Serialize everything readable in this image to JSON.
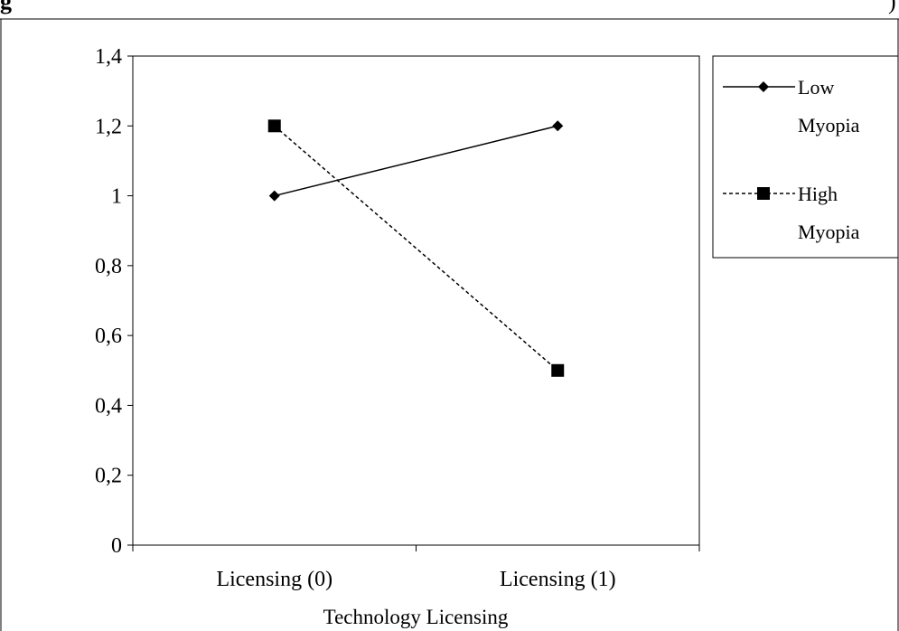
{
  "chart_data": {
    "type": "line",
    "caption_fragment_left": "g",
    "caption_fragment_right": ")",
    "categories": [
      "Licensing (0)",
      "Licensing (1)"
    ],
    "xlabel": "Technology Licensing",
    "ylabel": "",
    "ylim": [
      0,
      1.4
    ],
    "yticks": [
      "0",
      "0,2",
      "0,4",
      "0,6",
      "0,8",
      "1",
      "1,2",
      "1,4"
    ],
    "grid": false,
    "legend_position": "right",
    "series": [
      {
        "name": "Low Myopia",
        "name_lines": [
          "Low",
          "Myopia"
        ],
        "values": [
          1.0,
          1.2
        ],
        "marker": "diamond",
        "line_style": "solid",
        "color": "#000000"
      },
      {
        "name": "High Myopia",
        "name_lines": [
          "High",
          "Myopia"
        ],
        "values": [
          1.2,
          0.5
        ],
        "marker": "square",
        "line_style": "dashed",
        "color": "#000000"
      }
    ]
  }
}
